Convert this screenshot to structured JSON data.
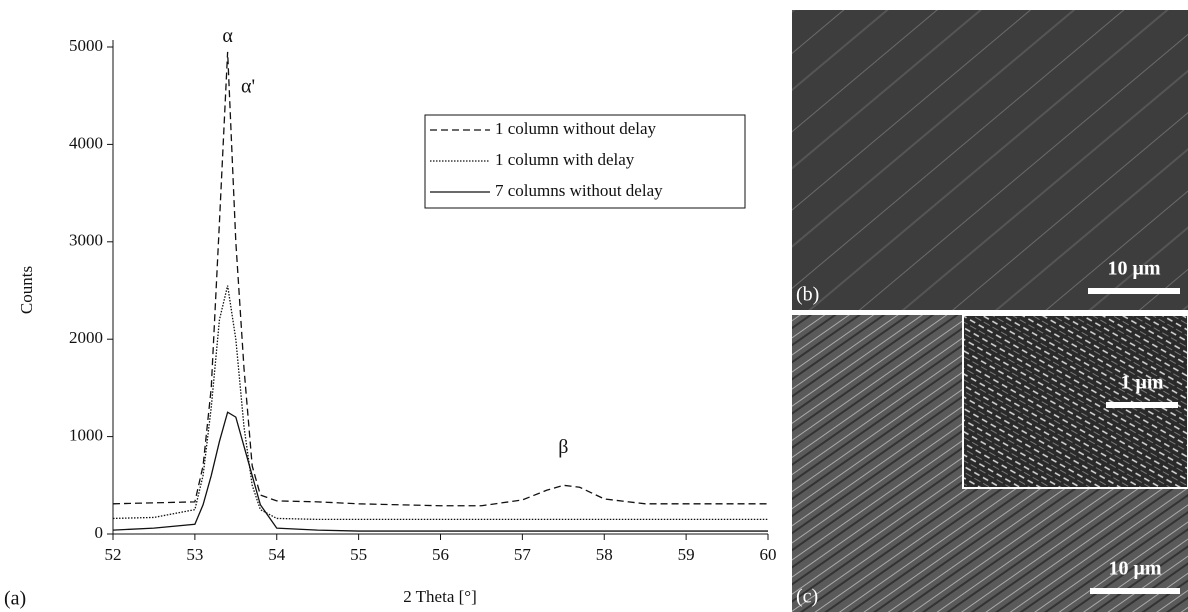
{
  "chart_data": {
    "type": "line",
    "x_label": "2 Theta [°]",
    "y_label": "Counts",
    "x": [
      52,
      52.5,
      53,
      53.1,
      53.2,
      53.3,
      53.4,
      53.5,
      53.6,
      53.7,
      53.8,
      54,
      54.5,
      55,
      56,
      56.5,
      57,
      57.3,
      57.5,
      57.7,
      58,
      58.5,
      59,
      60
    ],
    "series": [
      {
        "name": "1 column without delay",
        "color": "#111111",
        "dash": "dashed",
        "values": [
          310,
          320,
          330,
          700,
          1500,
          3200,
          4950,
          3000,
          1700,
          700,
          400,
          340,
          330,
          310,
          290,
          290,
          350,
          450,
          500,
          480,
          360,
          310,
          310,
          310
        ]
      },
      {
        "name": "1 column with delay",
        "color": "#111111",
        "dash": "dotted",
        "values": [
          160,
          170,
          250,
          600,
          1300,
          2200,
          2550,
          2000,
          1100,
          500,
          250,
          160,
          150,
          150,
          150,
          150,
          150,
          150,
          150,
          150,
          150,
          150,
          150,
          150
        ]
      },
      {
        "name": "7 columns without delay",
        "color": "#111111",
        "dash": "solid",
        "values": [
          40,
          60,
          100,
          300,
          600,
          950,
          1250,
          1200,
          900,
          600,
          300,
          60,
          40,
          30,
          30,
          30,
          30,
          30,
          30,
          30,
          30,
          30,
          30,
          30
        ]
      }
    ],
    "xlim": [
      52,
      60
    ],
    "ylim": [
      0,
      5000
    ],
    "xticks": [
      52,
      53,
      54,
      55,
      56,
      57,
      58,
      59,
      60
    ],
    "yticks": [
      0,
      1000,
      2000,
      3000,
      4000,
      5000
    ],
    "legend": "upper right",
    "annotations": [
      "α",
      "α'",
      "β"
    ]
  },
  "panels": {
    "a": "(a)",
    "b": "(b)",
    "c": "(c)"
  },
  "scale_bars": {
    "b": "10 μm",
    "c": "10 μm",
    "c_inset": "1 μm"
  }
}
